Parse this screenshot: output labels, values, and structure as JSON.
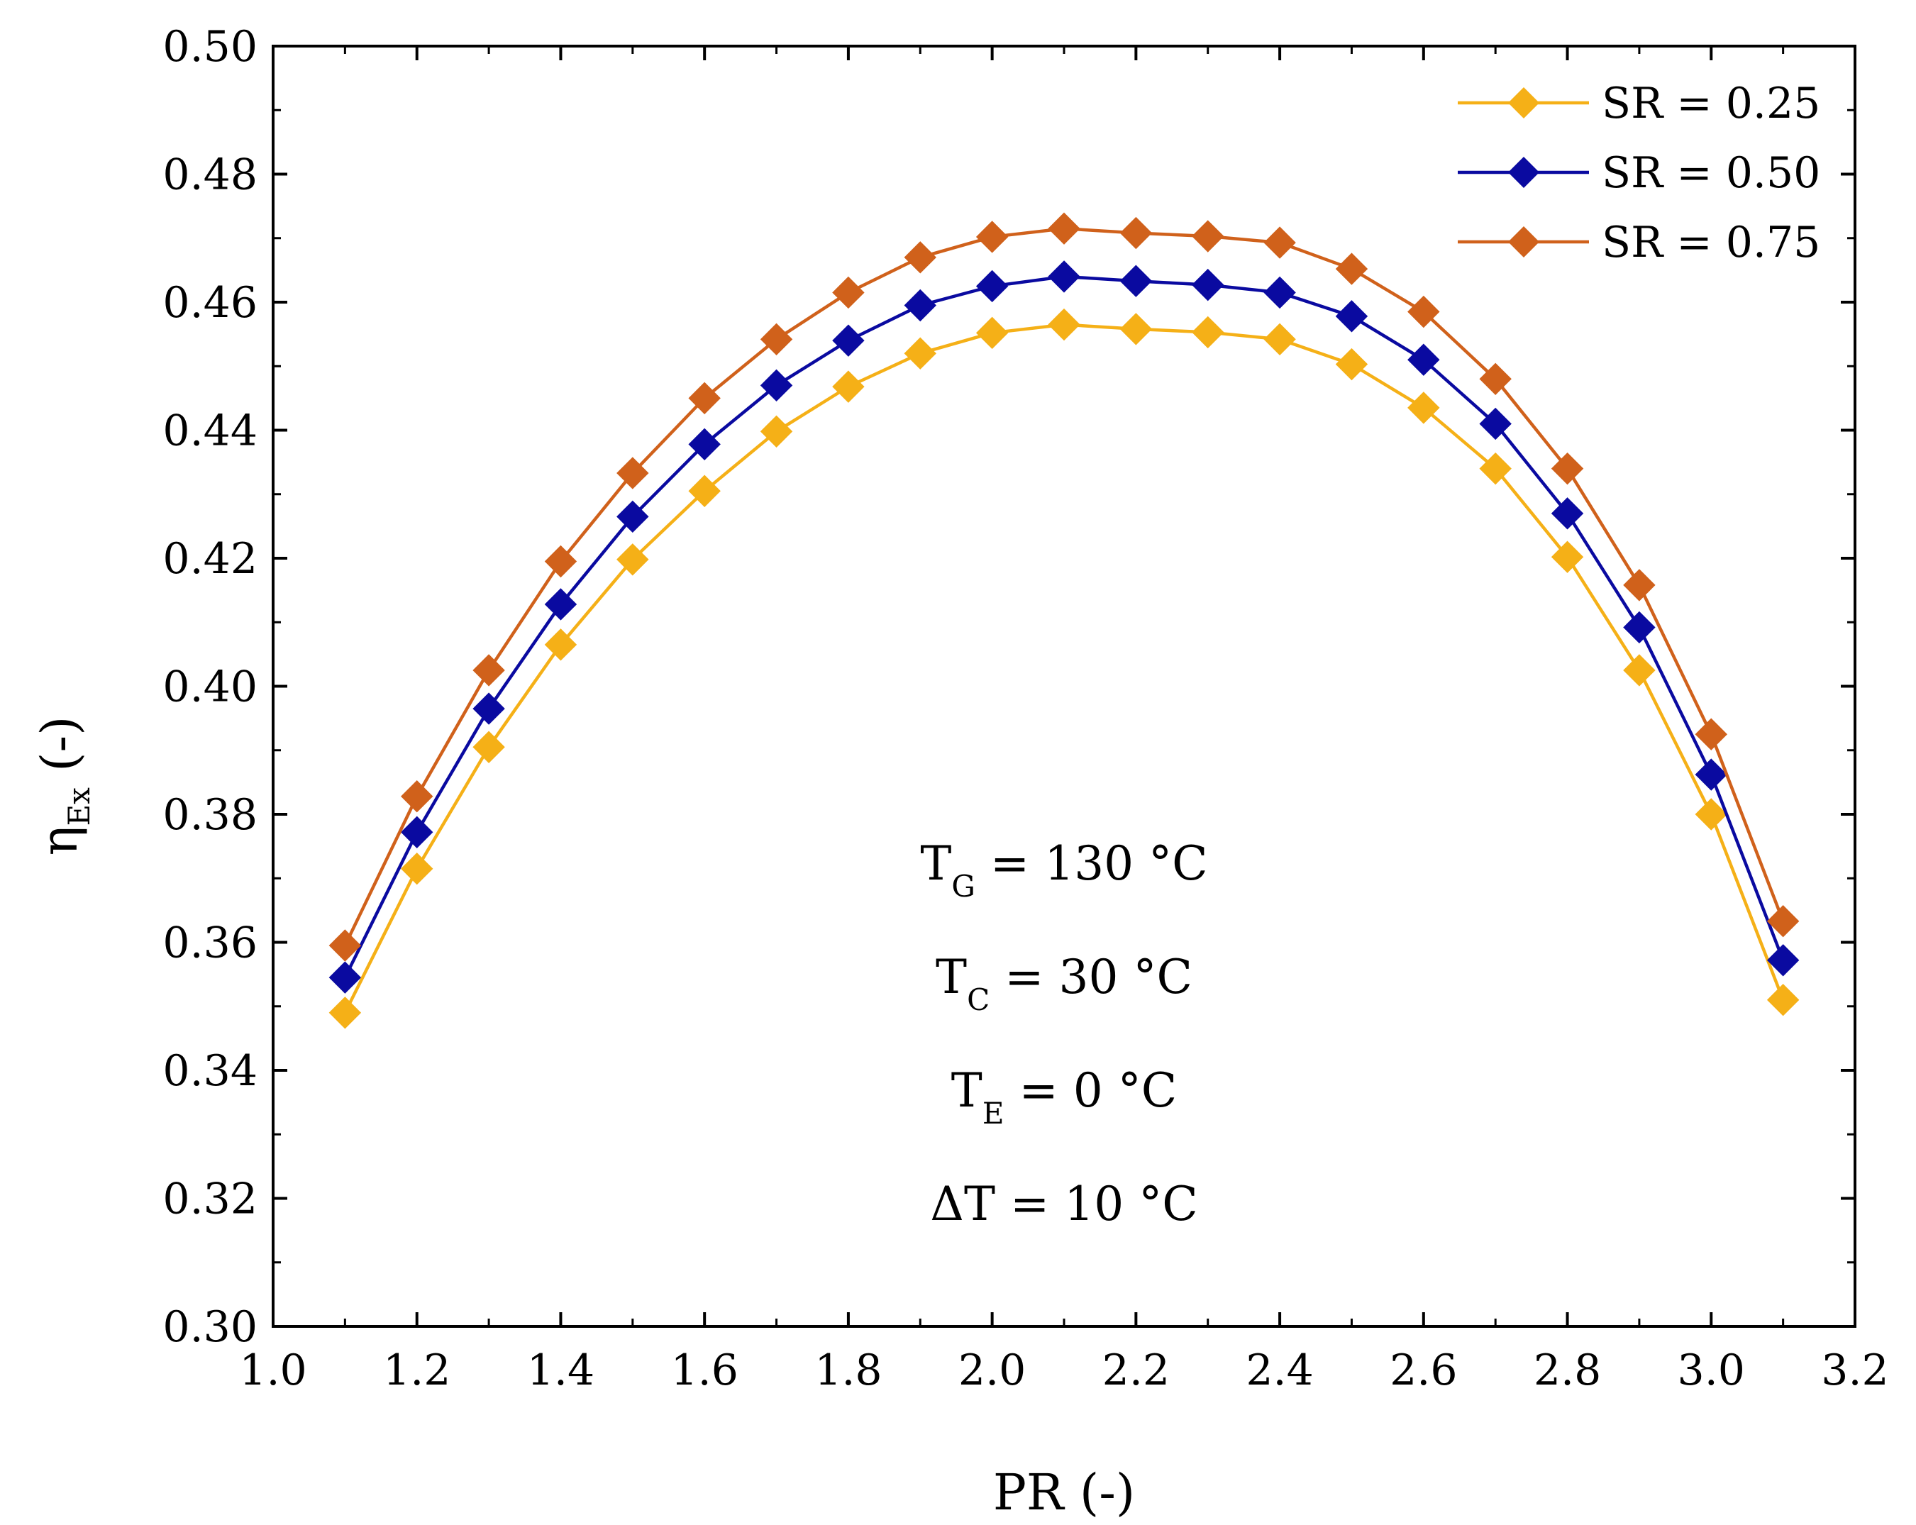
{
  "chart_data": {
    "type": "line",
    "title": "",
    "xlabel": "PR (-)",
    "ylabel": {
      "main": "η",
      "sub": "Ex",
      "suffix": " (-)"
    },
    "xlim": [
      1.0,
      3.2
    ],
    "ylim": [
      0.3,
      0.5
    ],
    "xticks": [
      1.0,
      1.2,
      1.4,
      1.6,
      1.8,
      2.0,
      2.2,
      2.4,
      2.6,
      2.8,
      3.0,
      3.2
    ],
    "xtick_labels": [
      "1.0",
      "1.2",
      "1.4",
      "1.6",
      "1.8",
      "2.0",
      "2.2",
      "2.4",
      "2.6",
      "2.8",
      "3.0",
      "3.2"
    ],
    "yticks": [
      0.3,
      0.32,
      0.34,
      0.36,
      0.38,
      0.4,
      0.42,
      0.44,
      0.46,
      0.48,
      0.5
    ],
    "ytick_labels": [
      "0.30",
      "0.32",
      "0.34",
      "0.36",
      "0.38",
      "0.40",
      "0.42",
      "0.44",
      "0.46",
      "0.48",
      "0.50"
    ],
    "grid": false,
    "legend_position": "top-right",
    "x": [
      1.1,
      1.2,
      1.3,
      1.4,
      1.5,
      1.6,
      1.7,
      1.8,
      1.9,
      2.0,
      2.1,
      2.2,
      2.3,
      2.4,
      2.5,
      2.6,
      2.7,
      2.8,
      2.9,
      3.0,
      3.1
    ],
    "series": [
      {
        "name": "SR = 0.25",
        "color": "#F5B017",
        "marker": "diamond",
        "values": [
          0.349,
          0.3715,
          0.3905,
          0.4065,
          0.4198,
          0.4305,
          0.4398,
          0.4468,
          0.452,
          0.4552,
          0.4565,
          0.4558,
          0.4553,
          0.4542,
          0.4503,
          0.4435,
          0.434,
          0.4202,
          0.4025,
          0.38,
          0.351
        ]
      },
      {
        "name": "SR = 0.50",
        "color": "#0A0AA0",
        "marker": "diamond",
        "values": [
          0.3545,
          0.3772,
          0.3965,
          0.4128,
          0.4265,
          0.4378,
          0.447,
          0.454,
          0.4595,
          0.4625,
          0.464,
          0.4633,
          0.4627,
          0.4615,
          0.4578,
          0.451,
          0.441,
          0.427,
          0.4092,
          0.3862,
          0.3572
        ]
      },
      {
        "name": "SR = 0.75",
        "color": "#D0611B",
        "marker": "diamond",
        "values": [
          0.3595,
          0.3828,
          0.4025,
          0.4195,
          0.4333,
          0.445,
          0.4542,
          0.4615,
          0.467,
          0.4702,
          0.4715,
          0.4708,
          0.4703,
          0.4693,
          0.4652,
          0.4585,
          0.448,
          0.434,
          0.4158,
          0.3925,
          0.3633
        ]
      }
    ],
    "annotations": [
      {
        "main": "T",
        "sub": "G",
        "rest": " = 130 °C"
      },
      {
        "main": "T",
        "sub": "C",
        "rest": " = 30 °C"
      },
      {
        "main": "T",
        "sub": "E",
        "rest": " = 0 °C"
      },
      {
        "main": "ΔT = 10 °C",
        "sub": "",
        "rest": ""
      }
    ]
  }
}
